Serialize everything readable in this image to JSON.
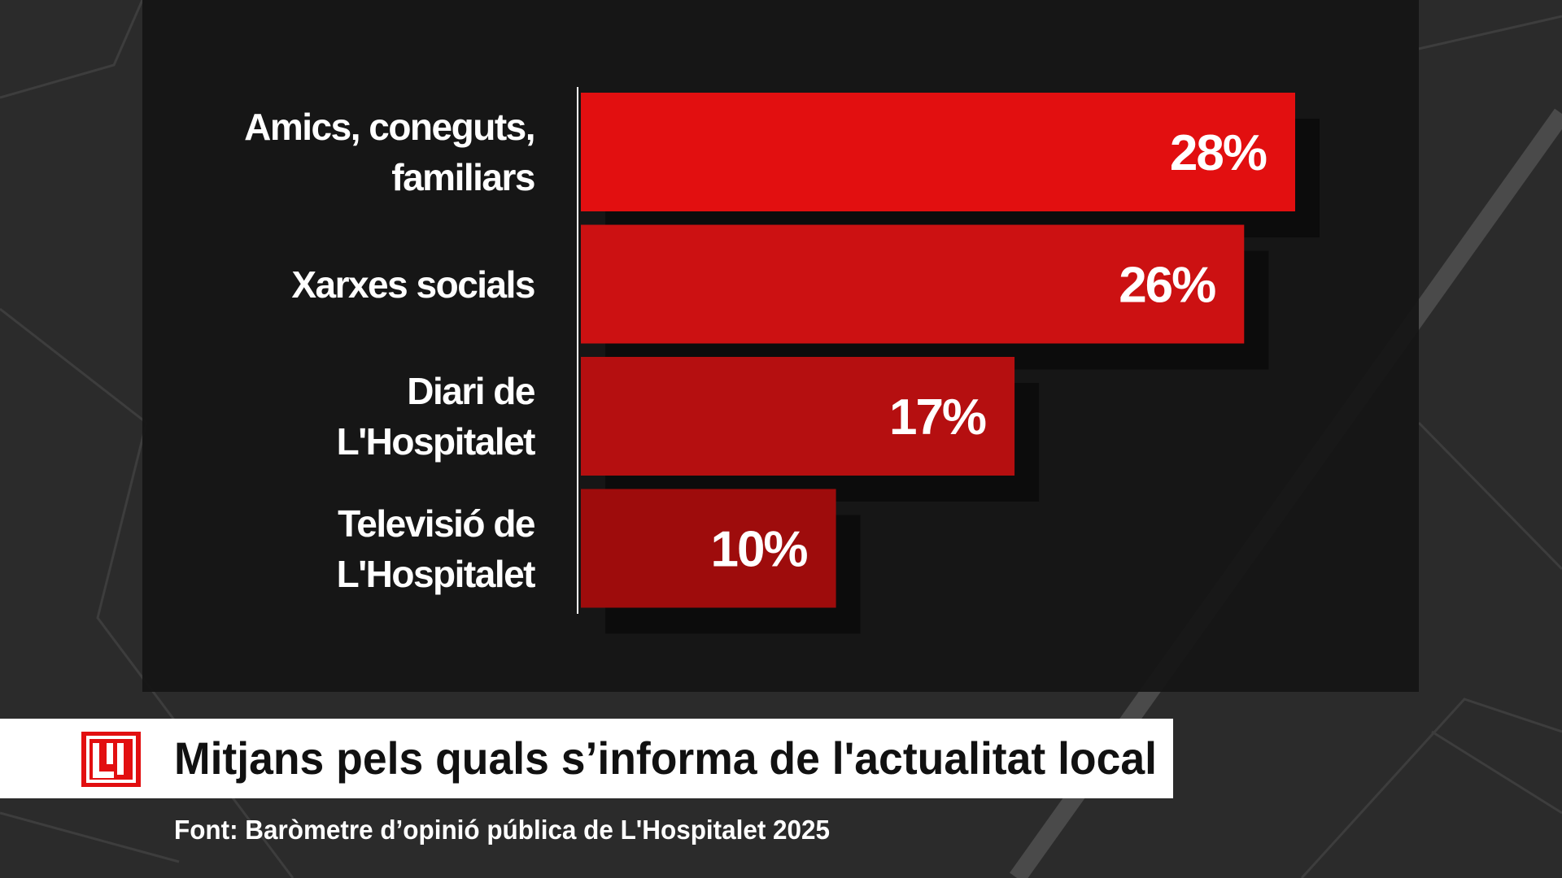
{
  "chart_data": {
    "type": "bar",
    "orientation": "horizontal",
    "title": "Mitjans pels quals s’informa de l'actualitat local",
    "source": "Font: Baròmetre d’opinió pública de L'Hospitalet 2025",
    "categories": [
      "Amics, coneguts,\nfamiliars",
      "Xarxes socials",
      "Diari de\nL'Hospitalet",
      "Televisió de\nL'Hospitalet"
    ],
    "values": [
      28,
      26,
      17,
      10
    ],
    "value_labels": [
      "28%",
      "26%",
      "17%",
      "10%"
    ],
    "colors": [
      "#e20f10",
      "#cc1112",
      "#b50f10",
      "#9e0c0c"
    ]
  }
}
